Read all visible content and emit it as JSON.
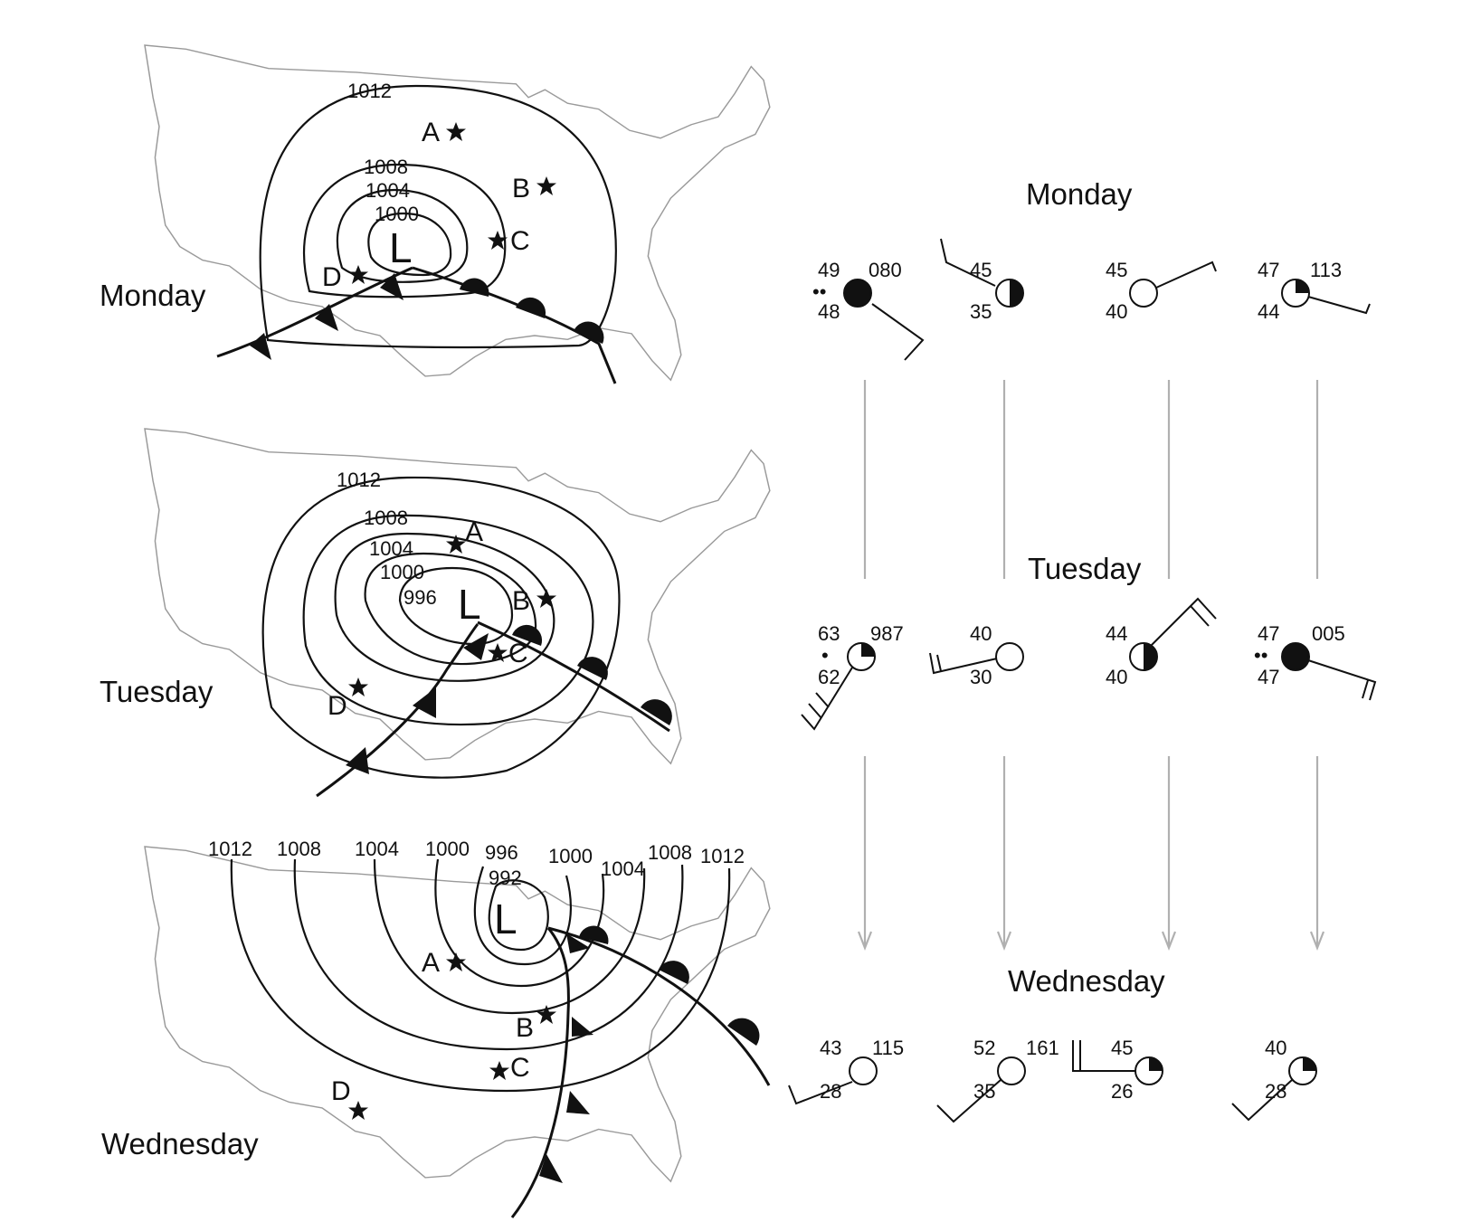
{
  "maps": [
    {
      "day": "Monday",
      "isobar_labels": [
        "1012",
        "1008",
        "1004",
        "1000"
      ],
      "low_label": "L",
      "stations": [
        "A",
        "B",
        "C",
        "D"
      ]
    },
    {
      "day": "Tuesday",
      "isobar_labels": [
        "1012",
        "1008",
        "1004",
        "1000",
        "996"
      ],
      "low_label": "L",
      "stations": [
        "A",
        "B",
        "C",
        "D"
      ]
    },
    {
      "day": "Wednesday",
      "isobar_labels": [
        "1012",
        "1008",
        "1004",
        "1000",
        "996",
        "992",
        "1000",
        "1004",
        "1008",
        "1012"
      ],
      "low_label": "L",
      "stations": [
        "A",
        "B",
        "C",
        "D"
      ]
    }
  ],
  "station_model_days": [
    "Monday",
    "Tuesday",
    "Wednesday"
  ],
  "station_models": {
    "monday": [
      {
        "temp": "49",
        "dew": "48",
        "pressure": "080",
        "weather": "••",
        "cover": "overcast"
      },
      {
        "temp": "45",
        "dew": "35",
        "pressure": "",
        "weather": "",
        "cover": "half"
      },
      {
        "temp": "45",
        "dew": "40",
        "pressure": "",
        "weather": "",
        "cover": "clear"
      },
      {
        "temp": "47",
        "dew": "44",
        "pressure": "113",
        "weather": "",
        "cover": "quarter"
      }
    ],
    "tuesday": [
      {
        "temp": "63",
        "dew": "62",
        "pressure": "987",
        "weather": "•",
        "cover": "quarter"
      },
      {
        "temp": "40",
        "dew": "30",
        "pressure": "",
        "weather": "",
        "cover": "clear"
      },
      {
        "temp": "44",
        "dew": "40",
        "pressure": "",
        "weather": "",
        "cover": "half"
      },
      {
        "temp": "47",
        "dew": "47",
        "pressure": "005",
        "weather": "••",
        "cover": "overcast"
      }
    ],
    "wednesday": [
      {
        "temp": "43",
        "dew": "28",
        "pressure": "115",
        "weather": "",
        "cover": "clear"
      },
      {
        "temp": "52",
        "dew": "35",
        "pressure": "161",
        "weather": "",
        "cover": "clear"
      },
      {
        "temp": "45",
        "dew": "26",
        "pressure": "",
        "weather": "",
        "cover": "quarter"
      },
      {
        "temp": "40",
        "dew": "28",
        "pressure": "",
        "weather": "",
        "cover": "quarter"
      }
    ]
  }
}
